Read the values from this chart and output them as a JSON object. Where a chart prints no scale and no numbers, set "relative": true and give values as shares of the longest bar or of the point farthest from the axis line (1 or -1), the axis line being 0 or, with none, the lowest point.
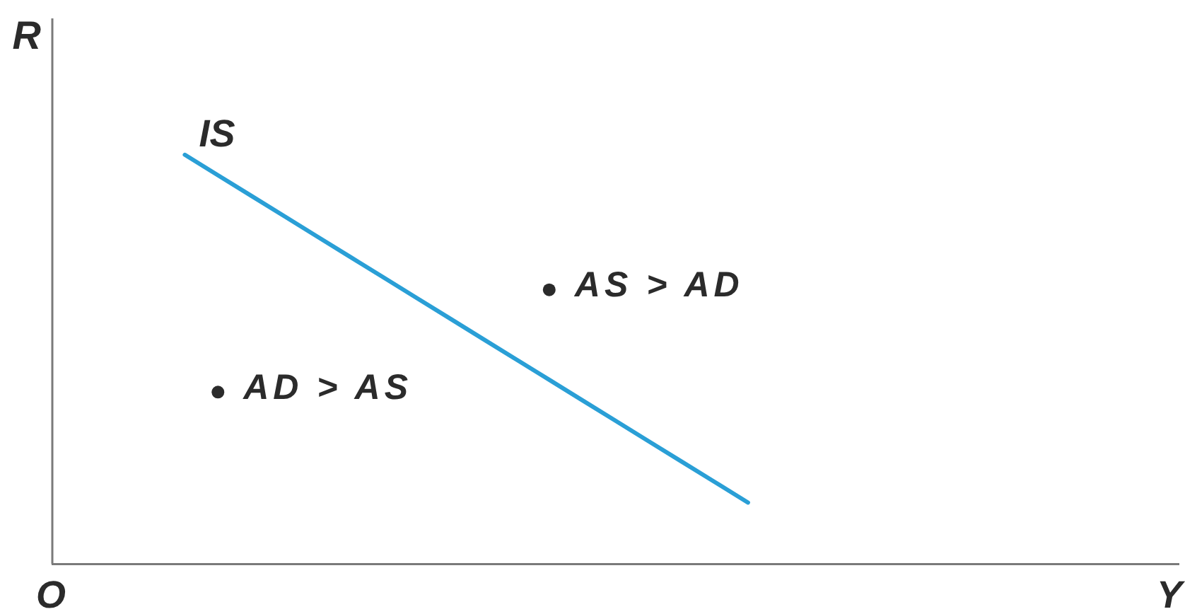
{
  "chart_data": {
    "type": "line",
    "relative": true,
    "xlabel": "Y",
    "ylabel": "R",
    "annotations": [
      "O"
    ],
    "grid": false,
    "categories": [
      null,
      null,
      null,
      null,
      null,
      null,
      null,
      null,
      null,
      null,
      null,
      null,
      null,
      null,
      null,
      null,
      null,
      null,
      null,
      null,
      null,
      null,
      null,
      null,
      null,
      null,
      null,
      null,
      null,
      null,
      null,
      null,
      null,
      null,
      null
    ],
    "series": [
      {
        "name": "IS",
        "color": "#2a9fd6",
        "marker": "none",
        "values": [
          null,
          null,
          null,
          null,
          1,
          0.95,
          0.9,
          0.85,
          0.8,
          0.75,
          0.7,
          0.65,
          0.6,
          0.55,
          0.5,
          0.45,
          0.4,
          0.35,
          0.3,
          0.25,
          0.2,
          0.15,
          null,
          null,
          null,
          null,
          null,
          null,
          null,
          null,
          null,
          null,
          null,
          null,
          null
        ]
      },
      {
        "name": "AD > AS",
        "color": "#2b2b2b",
        "marker": "circle",
        "values": [
          null,
          null,
          null,
          null,
          null,
          0.42,
          null,
          null,
          null,
          null,
          null,
          null,
          null,
          null,
          null,
          null,
          null,
          null,
          null,
          null,
          null,
          null,
          null,
          null,
          null,
          null,
          null,
          null,
          null,
          null,
          null,
          null,
          null,
          null,
          null
        ]
      },
      {
        "name": "AS > AD",
        "color": "#2b2b2b",
        "marker": "circle",
        "values": [
          null,
          null,
          null,
          null,
          null,
          null,
          null,
          null,
          null,
          null,
          null,
          null,
          null,
          null,
          null,
          0.67,
          null,
          null,
          null,
          null,
          null,
          null,
          null,
          null,
          null,
          null,
          null,
          null,
          null,
          null,
          null,
          null,
          null,
          null,
          null
        ]
      }
    ]
  }
}
